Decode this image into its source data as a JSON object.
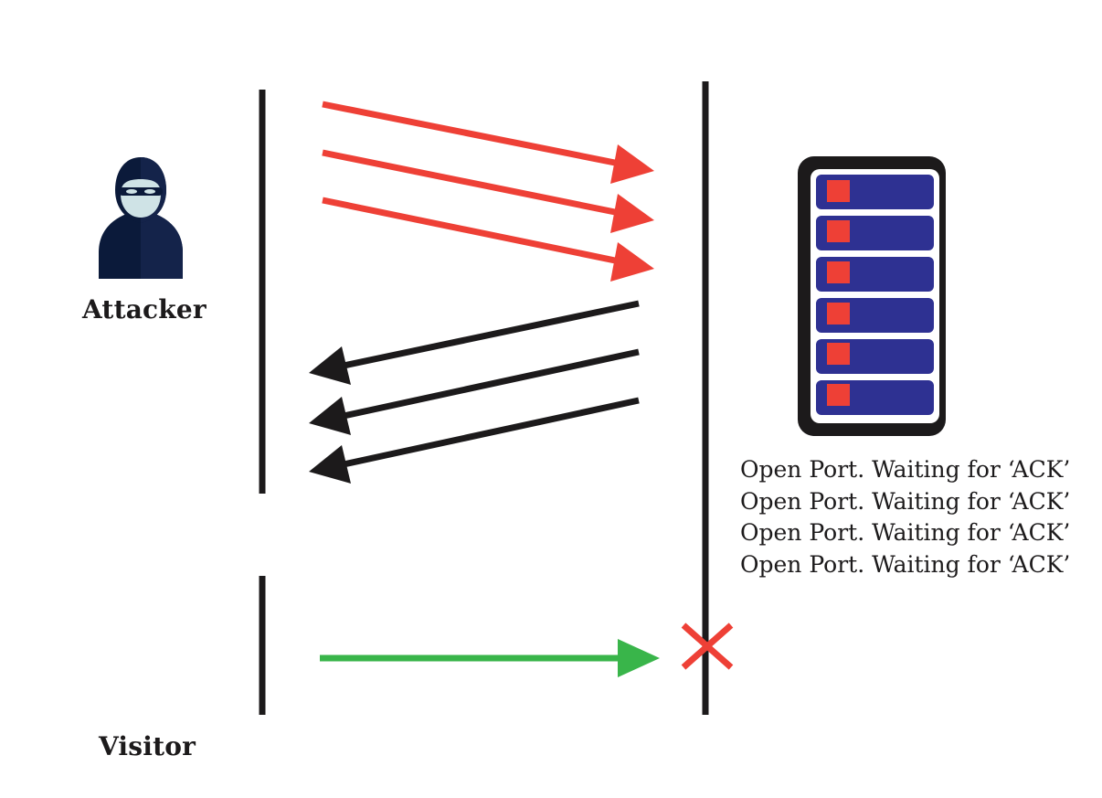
{
  "actors": {
    "attacker_label": "Attacker",
    "visitor_label": "Visitor"
  },
  "server": {
    "status_lines": [
      "Open Port. Waiting for ‘ACK’",
      "Open Port. Waiting for ‘ACK’",
      "Open Port. Waiting for ‘ACK’",
      "Open Port. Waiting for ‘ACK’"
    ]
  },
  "colors": {
    "syn_arrow": "#ee4036",
    "synack_arrow": "#1c1a1b",
    "visitor_arrow": "#39b54a",
    "blocked_mark": "#ee4036",
    "timeline": "#1c1a1b",
    "server_frame": "#1c1a1b",
    "server_slot": "#2e3192",
    "server_led": "#ee4036",
    "attacker_hood": "#0b1a3a",
    "attacker_face": "#cfe3e6"
  },
  "icons": {
    "attacker": "hooded-hacker-icon",
    "server": "server-rack-icon",
    "blocked": "red-x-icon"
  }
}
